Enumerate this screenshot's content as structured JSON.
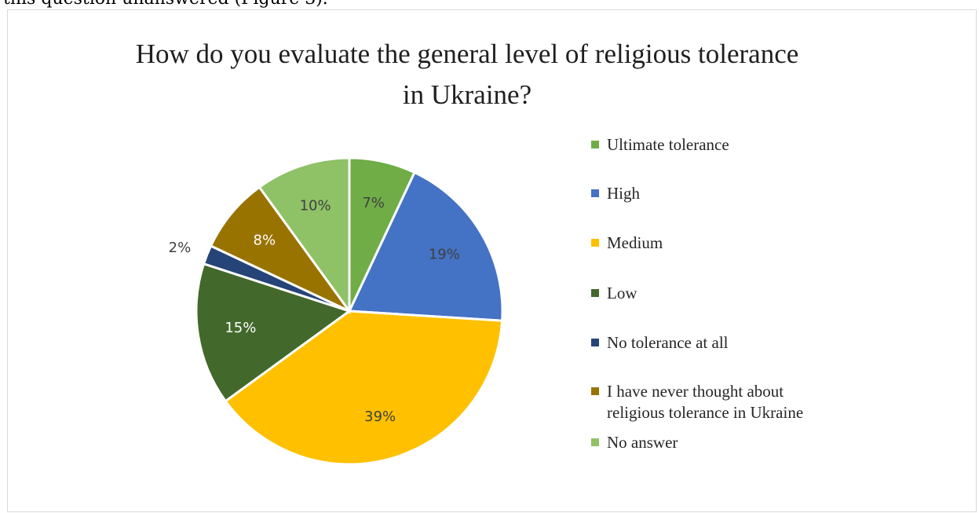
{
  "caption_fragment": "this question unanswered (Figure 3).",
  "chart_data": {
    "type": "pie",
    "title": "How do you evaluate the general level of religious tolerance in Ukraine?",
    "legend_position": "right",
    "slices": [
      {
        "label": "Ultimate tolerance",
        "value": 7,
        "display": "7%",
        "color": "#70ad47"
      },
      {
        "label": "High",
        "value": 19,
        "display": "19%",
        "color": "#4472c4"
      },
      {
        "label": "Medium",
        "value": 39,
        "display": "39%",
        "color": "#ffc000"
      },
      {
        "label": "Low",
        "value": 15,
        "display": "15%",
        "color": "#43682b"
      },
      {
        "label": "No tolerance at all",
        "value": 2,
        "display": "2%",
        "color": "#264478"
      },
      {
        "label": "I have never thought about religious tolerance in Ukraine",
        "value": 8,
        "display": "8%",
        "color": "#997300"
      },
      {
        "label": "No answer",
        "value": 10,
        "display": "10%",
        "color": "#8fc167"
      }
    ]
  }
}
